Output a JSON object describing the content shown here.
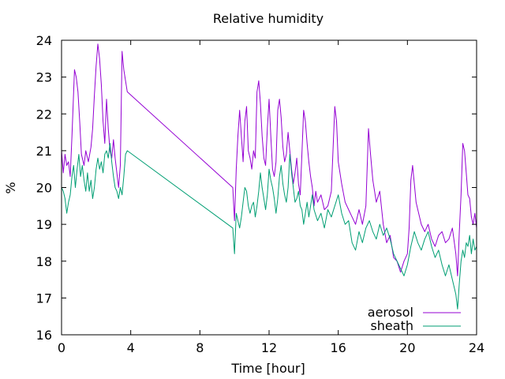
{
  "chart_data": {
    "type": "line",
    "title": "Relative humidity",
    "xlabel": "Time [hour]",
    "ylabel": "%",
    "xlim": [
      0,
      24
    ],
    "ylim": [
      16,
      24
    ],
    "xticks": [
      0,
      4,
      8,
      12,
      16,
      20,
      24
    ],
    "xtick_labels": [
      "0",
      "4",
      "8",
      "12",
      "16",
      "20",
      "24"
    ],
    "yticks": [
      16,
      17,
      18,
      19,
      20,
      21,
      22,
      23,
      24
    ],
    "ytick_labels": [
      "16",
      "17",
      "18",
      "19",
      "20",
      "21",
      "22",
      "23",
      "24"
    ],
    "grid": false,
    "legend_position": "bottom-right",
    "series": [
      {
        "name": "aerosol",
        "color": "#9400d3",
        "points": [
          [
            0.0,
            21.0
          ],
          [
            0.1,
            20.4
          ],
          [
            0.2,
            20.9
          ],
          [
            0.3,
            20.6
          ],
          [
            0.4,
            20.7
          ],
          [
            0.5,
            20.3
          ],
          [
            0.6,
            21.4
          ],
          [
            0.75,
            23.2
          ],
          [
            0.85,
            23.0
          ],
          [
            0.95,
            22.6
          ],
          [
            1.05,
            21.8
          ],
          [
            1.15,
            20.9
          ],
          [
            1.3,
            20.6
          ],
          [
            1.4,
            21.0
          ],
          [
            1.55,
            20.7
          ],
          [
            1.7,
            21.1
          ],
          [
            1.8,
            21.6
          ],
          [
            1.9,
            22.5
          ],
          [
            2.0,
            23.3
          ],
          [
            2.1,
            23.9
          ],
          [
            2.2,
            23.5
          ],
          [
            2.3,
            22.8
          ],
          [
            2.4,
            21.8
          ],
          [
            2.5,
            21.2
          ],
          [
            2.6,
            22.4
          ],
          [
            2.7,
            21.6
          ],
          [
            2.8,
            21.0
          ],
          [
            2.9,
            20.8
          ],
          [
            3.0,
            21.3
          ],
          [
            3.1,
            20.8
          ],
          [
            3.2,
            20.4
          ],
          [
            3.3,
            20.0
          ],
          [
            3.4,
            20.6
          ],
          [
            3.5,
            23.7
          ],
          [
            3.6,
            23.2
          ],
          [
            3.7,
            22.9
          ],
          [
            3.8,
            22.6
          ],
          [
            9.9,
            20.0
          ],
          [
            10.0,
            19.1
          ],
          [
            10.1,
            20.5
          ],
          [
            10.2,
            21.4
          ],
          [
            10.3,
            22.1
          ],
          [
            10.4,
            21.4
          ],
          [
            10.5,
            20.7
          ],
          [
            10.6,
            21.8
          ],
          [
            10.7,
            22.2
          ],
          [
            10.8,
            21.0
          ],
          [
            10.9,
            20.8
          ],
          [
            11.0,
            20.5
          ],
          [
            11.1,
            21.0
          ],
          [
            11.2,
            20.8
          ],
          [
            11.3,
            22.6
          ],
          [
            11.4,
            22.9
          ],
          [
            11.5,
            22.3
          ],
          [
            11.6,
            21.4
          ],
          [
            11.7,
            20.8
          ],
          [
            11.8,
            20.6
          ],
          [
            11.9,
            21.6
          ],
          [
            12.0,
            22.4
          ],
          [
            12.1,
            21.4
          ],
          [
            12.2,
            20.5
          ],
          [
            12.3,
            20.3
          ],
          [
            12.4,
            20.7
          ],
          [
            12.5,
            22.1
          ],
          [
            12.6,
            22.4
          ],
          [
            12.7,
            21.9
          ],
          [
            12.8,
            21.1
          ],
          [
            12.9,
            20.7
          ],
          [
            13.0,
            20.9
          ],
          [
            13.1,
            21.5
          ],
          [
            13.2,
            21.0
          ],
          [
            13.3,
            20.5
          ],
          [
            13.4,
            20.1
          ],
          [
            13.5,
            20.4
          ],
          [
            13.6,
            20.8
          ],
          [
            13.7,
            20.1
          ],
          [
            13.8,
            19.8
          ],
          [
            13.9,
            20.9
          ],
          [
            14.0,
            22.1
          ],
          [
            14.1,
            21.8
          ],
          [
            14.2,
            21.2
          ],
          [
            14.3,
            20.7
          ],
          [
            14.4,
            20.3
          ],
          [
            14.5,
            20.0
          ],
          [
            14.6,
            19.5
          ],
          [
            14.7,
            19.9
          ],
          [
            14.8,
            19.6
          ],
          [
            15.0,
            19.8
          ],
          [
            15.2,
            19.4
          ],
          [
            15.4,
            19.5
          ],
          [
            15.6,
            19.9
          ],
          [
            15.8,
            22.2
          ],
          [
            15.9,
            21.8
          ],
          [
            16.0,
            20.7
          ],
          [
            16.2,
            20.1
          ],
          [
            16.4,
            19.6
          ],
          [
            16.6,
            19.4
          ],
          [
            16.8,
            19.2
          ],
          [
            17.0,
            19.0
          ],
          [
            17.2,
            19.4
          ],
          [
            17.4,
            19.0
          ],
          [
            17.6,
            19.5
          ],
          [
            17.75,
            21.6
          ],
          [
            17.85,
            21.0
          ],
          [
            18.0,
            20.2
          ],
          [
            18.2,
            19.6
          ],
          [
            18.4,
            19.9
          ],
          [
            18.6,
            19.0
          ],
          [
            18.8,
            18.5
          ],
          [
            19.0,
            18.7
          ],
          [
            19.2,
            18.1
          ],
          [
            19.4,
            18.0
          ],
          [
            19.6,
            17.7
          ],
          [
            19.8,
            18.0
          ],
          [
            20.0,
            18.2
          ],
          [
            20.1,
            18.9
          ],
          [
            20.2,
            20.2
          ],
          [
            20.3,
            20.6
          ],
          [
            20.4,
            20.1
          ],
          [
            20.5,
            19.6
          ],
          [
            20.6,
            19.4
          ],
          [
            20.8,
            19.0
          ],
          [
            21.0,
            18.8
          ],
          [
            21.2,
            19.0
          ],
          [
            21.4,
            18.6
          ],
          [
            21.6,
            18.4
          ],
          [
            21.8,
            18.7
          ],
          [
            22.0,
            18.8
          ],
          [
            22.2,
            18.5
          ],
          [
            22.4,
            18.6
          ],
          [
            22.6,
            18.9
          ],
          [
            22.8,
            18.2
          ],
          [
            22.9,
            17.6
          ],
          [
            23.0,
            18.8
          ],
          [
            23.1,
            19.8
          ],
          [
            23.2,
            21.2
          ],
          [
            23.3,
            21.0
          ],
          [
            23.4,
            20.4
          ],
          [
            23.5,
            19.8
          ],
          [
            23.6,
            19.7
          ],
          [
            23.7,
            19.2
          ],
          [
            23.8,
            19.0
          ],
          [
            23.9,
            19.3
          ],
          [
            24.0,
            18.9
          ]
        ]
      },
      {
        "name": "sheath",
        "color": "#009e73",
        "points": [
          [
            0.0,
            20.0
          ],
          [
            0.1,
            19.9
          ],
          [
            0.2,
            19.7
          ],
          [
            0.3,
            19.3
          ],
          [
            0.4,
            19.6
          ],
          [
            0.5,
            19.8
          ],
          [
            0.6,
            20.3
          ],
          [
            0.7,
            20.6
          ],
          [
            0.8,
            20.0
          ],
          [
            0.9,
            20.5
          ],
          [
            1.0,
            20.9
          ],
          [
            1.1,
            20.3
          ],
          [
            1.2,
            20.6
          ],
          [
            1.3,
            20.2
          ],
          [
            1.4,
            19.9
          ],
          [
            1.5,
            20.4
          ],
          [
            1.6,
            19.9
          ],
          [
            1.7,
            20.2
          ],
          [
            1.8,
            19.7
          ],
          [
            1.9,
            20.0
          ],
          [
            2.0,
            20.5
          ],
          [
            2.1,
            20.8
          ],
          [
            2.2,
            20.5
          ],
          [
            2.3,
            20.7
          ],
          [
            2.4,
            20.4
          ],
          [
            2.5,
            20.9
          ],
          [
            2.6,
            21.0
          ],
          [
            2.7,
            20.8
          ],
          [
            2.8,
            21.2
          ],
          [
            2.9,
            20.7
          ],
          [
            3.0,
            20.3
          ],
          [
            3.1,
            20.0
          ],
          [
            3.2,
            19.9
          ],
          [
            3.3,
            19.7
          ],
          [
            3.4,
            20.0
          ],
          [
            3.5,
            19.8
          ],
          [
            3.6,
            20.3
          ],
          [
            3.7,
            20.9
          ],
          [
            3.8,
            21.0
          ],
          [
            9.9,
            18.9
          ],
          [
            10.0,
            18.2
          ],
          [
            10.1,
            19.3
          ],
          [
            10.2,
            19.1
          ],
          [
            10.3,
            18.9
          ],
          [
            10.4,
            19.2
          ],
          [
            10.5,
            19.6
          ],
          [
            10.6,
            20.0
          ],
          [
            10.7,
            19.9
          ],
          [
            10.8,
            19.5
          ],
          [
            10.9,
            19.3
          ],
          [
            11.0,
            19.5
          ],
          [
            11.1,
            19.6
          ],
          [
            11.2,
            19.2
          ],
          [
            11.3,
            19.5
          ],
          [
            11.4,
            19.9
          ],
          [
            11.5,
            20.4
          ],
          [
            11.6,
            20.0
          ],
          [
            11.7,
            19.7
          ],
          [
            11.8,
            19.4
          ],
          [
            11.9,
            19.8
          ],
          [
            12.0,
            20.5
          ],
          [
            12.1,
            20.2
          ],
          [
            12.2,
            20.0
          ],
          [
            12.3,
            19.7
          ],
          [
            12.4,
            19.3
          ],
          [
            12.5,
            19.7
          ],
          [
            12.6,
            20.3
          ],
          [
            12.7,
            20.6
          ],
          [
            12.8,
            20.1
          ],
          [
            12.9,
            19.8
          ],
          [
            13.0,
            19.6
          ],
          [
            13.1,
            20.0
          ],
          [
            13.2,
            20.9
          ],
          [
            13.3,
            20.4
          ],
          [
            13.4,
            20.0
          ],
          [
            13.5,
            19.6
          ],
          [
            13.6,
            19.7
          ],
          [
            13.7,
            19.9
          ],
          [
            13.8,
            19.5
          ],
          [
            13.9,
            19.4
          ],
          [
            14.0,
            19.0
          ],
          [
            14.1,
            19.3
          ],
          [
            14.2,
            19.6
          ],
          [
            14.3,
            19.2
          ],
          [
            14.4,
            19.5
          ],
          [
            14.5,
            19.8
          ],
          [
            14.6,
            19.4
          ],
          [
            14.8,
            19.1
          ],
          [
            15.0,
            19.3
          ],
          [
            15.2,
            18.9
          ],
          [
            15.4,
            19.4
          ],
          [
            15.6,
            19.2
          ],
          [
            15.8,
            19.5
          ],
          [
            16.0,
            19.8
          ],
          [
            16.2,
            19.3
          ],
          [
            16.4,
            19.0
          ],
          [
            16.6,
            19.1
          ],
          [
            16.8,
            18.5
          ],
          [
            17.0,
            18.3
          ],
          [
            17.2,
            18.8
          ],
          [
            17.4,
            18.5
          ],
          [
            17.6,
            18.9
          ],
          [
            17.8,
            19.1
          ],
          [
            18.0,
            18.8
          ],
          [
            18.2,
            18.6
          ],
          [
            18.4,
            19.0
          ],
          [
            18.6,
            18.7
          ],
          [
            18.8,
            18.9
          ],
          [
            19.0,
            18.6
          ],
          [
            19.2,
            18.2
          ],
          [
            19.4,
            18.0
          ],
          [
            19.6,
            17.8
          ],
          [
            19.8,
            17.6
          ],
          [
            20.0,
            17.9
          ],
          [
            20.2,
            18.4
          ],
          [
            20.4,
            18.8
          ],
          [
            20.6,
            18.5
          ],
          [
            20.8,
            18.3
          ],
          [
            21.0,
            18.6
          ],
          [
            21.2,
            18.8
          ],
          [
            21.4,
            18.4
          ],
          [
            21.6,
            18.1
          ],
          [
            21.8,
            18.3
          ],
          [
            22.0,
            17.9
          ],
          [
            22.2,
            17.6
          ],
          [
            22.4,
            17.9
          ],
          [
            22.6,
            17.5
          ],
          [
            22.8,
            17.1
          ],
          [
            22.9,
            16.7
          ],
          [
            23.0,
            17.4
          ],
          [
            23.1,
            18.0
          ],
          [
            23.2,
            18.3
          ],
          [
            23.3,
            18.1
          ],
          [
            23.4,
            18.5
          ],
          [
            23.5,
            18.4
          ],
          [
            23.6,
            18.7
          ],
          [
            23.7,
            18.2
          ],
          [
            23.8,
            18.6
          ],
          [
            23.9,
            18.3
          ],
          [
            24.0,
            18.4
          ]
        ]
      }
    ]
  }
}
